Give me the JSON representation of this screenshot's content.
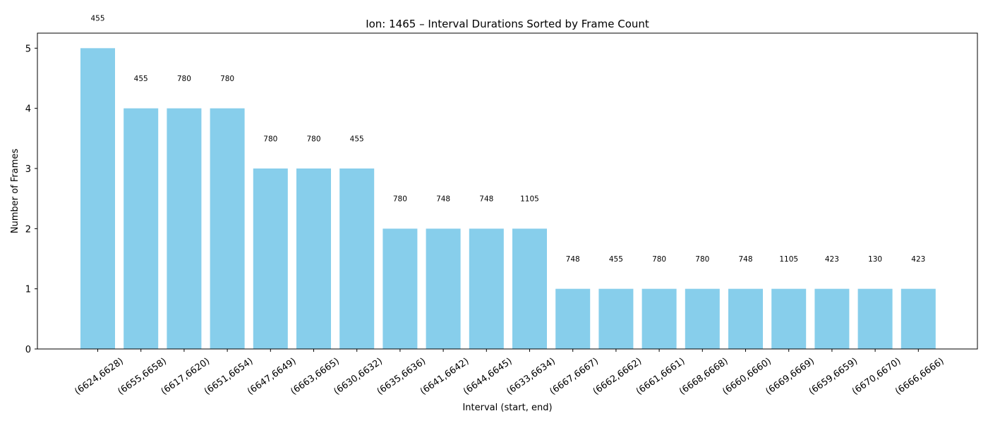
{
  "chart_data": {
    "type": "bar",
    "title": "Ion: 1465 – Interval Durations Sorted by Frame Count",
    "xlabel": "Interval (start, end)",
    "ylabel": "Number of Frames",
    "ylim": [
      0,
      5.25
    ],
    "yticks": [
      0,
      1,
      2,
      3,
      4,
      5
    ],
    "grid": false,
    "bar_color": "#87ceeb",
    "categories": [
      "(6624,6628)",
      "(6655,6658)",
      "(6617,6620)",
      "(6651,6654)",
      "(6647,6649)",
      "(6663,6665)",
      "(6630,6632)",
      "(6635,6636)",
      "(6641,6642)",
      "(6644,6645)",
      "(6633,6634)",
      "(6667,6667)",
      "(6662,6662)",
      "(6661,6661)",
      "(6668,6668)",
      "(6660,6660)",
      "(6669,6669)",
      "(6659,6659)",
      "(6670,6670)",
      "(6666,6666)"
    ],
    "values": [
      5,
      4,
      4,
      4,
      3,
      3,
      3,
      2,
      2,
      2,
      2,
      1,
      1,
      1,
      1,
      1,
      1,
      1,
      1,
      1
    ],
    "bar_labels": [
      "455",
      "455",
      "780",
      "780",
      "780",
      "780",
      "455",
      "780",
      "748",
      "748",
      "1105",
      "748",
      "455",
      "780",
      "780",
      "748",
      "1105",
      "423",
      "130",
      "423"
    ]
  }
}
